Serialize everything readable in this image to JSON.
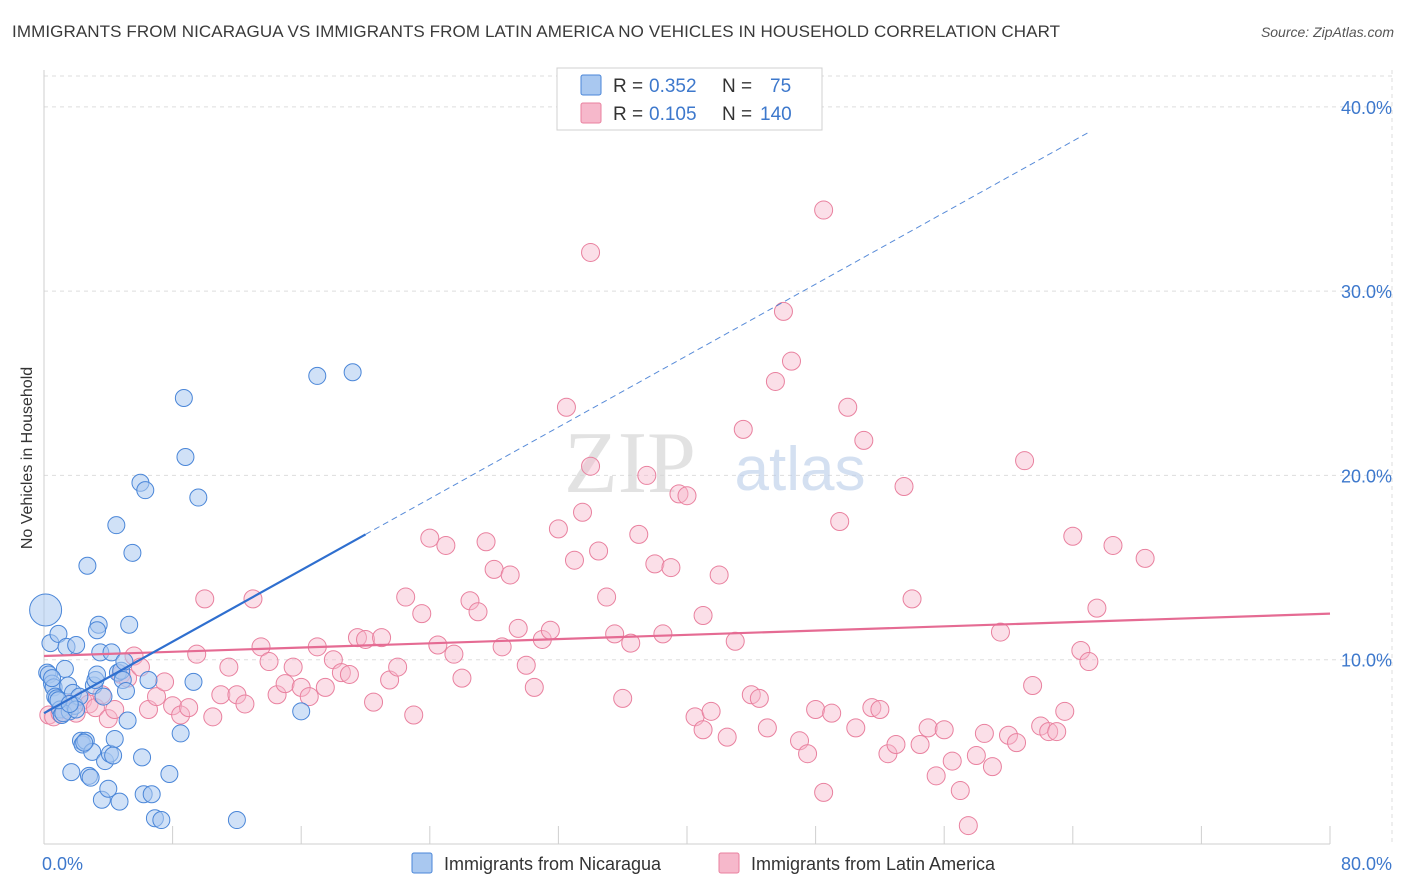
{
  "title": "IMMIGRANTS FROM NICARAGUA VS IMMIGRANTS FROM LATIN AMERICA NO VEHICLES IN HOUSEHOLD CORRELATION CHART",
  "source": "Source: ZipAtlas.com",
  "watermark": {
    "zip": "ZIP",
    "atlas": "atlas"
  },
  "colors": {
    "blue": "#4a86d8",
    "blue_fill": "#a9c8f0",
    "blue_line": "#2f6fcf",
    "pink": "#e9819f",
    "pink_fill": "#f6b8cb",
    "pink_line": "#e56b93",
    "tick_text": "#3d78cc",
    "grid": "#dddddd"
  },
  "legend": {
    "rows": [
      {
        "r_label": "R =",
        "r_value": "0.352",
        "n_label": "N =",
        "n_value": "75"
      },
      {
        "r_label": "R =",
        "r_value": "0.105",
        "n_label": "N =",
        "n_value": "140"
      }
    ]
  },
  "chart_data": {
    "type": "scatter",
    "title": "IMMIGRANTS FROM NICARAGUA VS IMMIGRANTS FROM LATIN AMERICA NO VEHICLES IN HOUSEHOLD CORRELATION CHART",
    "xlabel": "",
    "ylabel": "No Vehicles in Household",
    "xlim": [
      0,
      80
    ],
    "ylim": [
      0,
      42
    ],
    "x_tick_labels": [
      "0.0%",
      "80.0%"
    ],
    "y_ticks": [
      10,
      20,
      30,
      40
    ],
    "y_tick_labels": [
      "10.0%",
      "20.0%",
      "30.0%",
      "40.0%"
    ],
    "grid": true,
    "legend_position": "top-center",
    "series": [
      {
        "name": "Immigrants from Nicaragua",
        "r": 0.352,
        "n": 75,
        "trend": {
          "x0": 0.0,
          "y0": 7.1,
          "x1": 20.0,
          "y1": 16.8,
          "dash_to_x": 65.0
        },
        "points": [
          [
            0.1,
            12.7
          ],
          [
            0.2,
            9.3
          ],
          [
            0.3,
            9.2
          ],
          [
            0.4,
            10.9
          ],
          [
            0.5,
            8.7
          ],
          [
            0.6,
            8.5
          ],
          [
            0.7,
            8.0
          ],
          [
            0.8,
            7.9
          ],
          [
            0.9,
            11.4
          ],
          [
            1.0,
            7.3
          ],
          [
            1.1,
            7.0
          ],
          [
            1.3,
            9.5
          ],
          [
            1.4,
            10.7
          ],
          [
            1.5,
            8.6
          ],
          [
            1.6,
            7.2
          ],
          [
            1.7,
            3.9
          ],
          [
            1.8,
            8.2
          ],
          [
            1.9,
            7.5
          ],
          [
            2.0,
            10.8
          ],
          [
            2.2,
            8.0
          ],
          [
            2.3,
            5.6
          ],
          [
            2.4,
            5.4
          ],
          [
            2.6,
            5.6
          ],
          [
            2.7,
            15.1
          ],
          [
            2.8,
            3.7
          ],
          [
            2.9,
            3.6
          ],
          [
            3.0,
            5.0
          ],
          [
            3.1,
            8.6
          ],
          [
            3.2,
            8.9
          ],
          [
            3.3,
            9.2
          ],
          [
            3.4,
            11.9
          ],
          [
            3.5,
            10.4
          ],
          [
            3.6,
            2.4
          ],
          [
            3.7,
            8.0
          ],
          [
            3.8,
            4.5
          ],
          [
            4.0,
            3.0
          ],
          [
            4.1,
            4.9
          ],
          [
            4.2,
            10.4
          ],
          [
            4.4,
            5.7
          ],
          [
            4.5,
            17.3
          ],
          [
            4.6,
            9.3
          ],
          [
            4.8,
            9.4
          ],
          [
            4.9,
            8.9
          ],
          [
            5.1,
            8.3
          ],
          [
            5.2,
            6.7
          ],
          [
            5.3,
            11.9
          ],
          [
            5.5,
            15.8
          ],
          [
            6.0,
            19.6
          ],
          [
            6.2,
            2.7
          ],
          [
            6.3,
            19.2
          ],
          [
            6.5,
            8.9
          ],
          [
            6.7,
            2.7
          ],
          [
            6.9,
            1.4
          ],
          [
            7.3,
            1.3
          ],
          [
            7.8,
            3.8
          ],
          [
            8.5,
            6.0
          ],
          [
            8.7,
            24.2
          ],
          [
            8.8,
            21.0
          ],
          [
            9.3,
            8.8
          ],
          [
            9.6,
            18.8
          ],
          [
            12.0,
            1.3
          ],
          [
            16.0,
            7.2
          ],
          [
            17.0,
            25.4
          ],
          [
            19.2,
            25.6
          ],
          [
            0.5,
            9.0
          ],
          [
            1.2,
            7.1
          ],
          [
            2.5,
            5.5
          ],
          [
            4.3,
            4.8
          ],
          [
            5.0,
            9.9
          ],
          [
            6.1,
            4.7
          ],
          [
            3.3,
            11.6
          ],
          [
            2.0,
            7.3
          ],
          [
            0.9,
            7.8
          ],
          [
            1.6,
            7.6
          ],
          [
            4.7,
            2.3
          ]
        ]
      },
      {
        "name": "Immigrants from Latin America",
        "r": 0.105,
        "n": 140,
        "trend": {
          "x0": 0.0,
          "y0": 10.2,
          "x1": 80.0,
          "y1": 12.5
        },
        "points": [
          [
            0.3,
            7.0
          ],
          [
            0.6,
            6.9
          ],
          [
            1.0,
            7.1
          ],
          [
            1.3,
            7.3
          ],
          [
            1.6,
            7.6
          ],
          [
            2.0,
            7.1
          ],
          [
            2.4,
            7.8
          ],
          [
            2.8,
            7.6
          ],
          [
            3.2,
            7.4
          ],
          [
            3.6,
            8.1
          ],
          [
            4.0,
            6.8
          ],
          [
            4.4,
            7.3
          ],
          [
            4.8,
            9.2
          ],
          [
            5.2,
            9.0
          ],
          [
            5.6,
            10.2
          ],
          [
            6.0,
            9.6
          ],
          [
            6.5,
            7.3
          ],
          [
            7.0,
            8.0
          ],
          [
            7.5,
            8.8
          ],
          [
            8.0,
            7.5
          ],
          [
            8.5,
            7.0
          ],
          [
            9.0,
            7.4
          ],
          [
            9.5,
            10.3
          ],
          [
            10.0,
            13.3
          ],
          [
            10.5,
            6.9
          ],
          [
            11.0,
            8.1
          ],
          [
            11.5,
            9.6
          ],
          [
            12.0,
            8.1
          ],
          [
            12.5,
            7.6
          ],
          [
            13.0,
            13.3
          ],
          [
            13.5,
            10.7
          ],
          [
            14.0,
            9.9
          ],
          [
            14.5,
            8.1
          ],
          [
            15.0,
            8.7
          ],
          [
            15.5,
            9.6
          ],
          [
            16.0,
            8.5
          ],
          [
            16.5,
            8.0
          ],
          [
            17.0,
            10.7
          ],
          [
            17.5,
            8.5
          ],
          [
            18.0,
            10.0
          ],
          [
            18.5,
            9.3
          ],
          [
            19.0,
            9.2
          ],
          [
            19.5,
            11.2
          ],
          [
            20.0,
            11.1
          ],
          [
            20.5,
            7.7
          ],
          [
            21.0,
            11.2
          ],
          [
            21.5,
            8.9
          ],
          [
            22.0,
            9.6
          ],
          [
            22.5,
            13.4
          ],
          [
            23.0,
            7.0
          ],
          [
            23.5,
            12.5
          ],
          [
            24.0,
            16.6
          ],
          [
            24.5,
            10.8
          ],
          [
            25.0,
            16.2
          ],
          [
            25.5,
            10.3
          ],
          [
            26.0,
            9.0
          ],
          [
            26.5,
            13.2
          ],
          [
            27.0,
            12.6
          ],
          [
            27.5,
            16.4
          ],
          [
            28.0,
            14.9
          ],
          [
            28.5,
            10.7
          ],
          [
            29.0,
            14.6
          ],
          [
            29.5,
            11.7
          ],
          [
            30.0,
            9.7
          ],
          [
            30.5,
            8.5
          ],
          [
            31.0,
            11.1
          ],
          [
            31.5,
            11.6
          ],
          [
            32.0,
            17.1
          ],
          [
            32.5,
            23.7
          ],
          [
            33.0,
            15.4
          ],
          [
            33.5,
            18.0
          ],
          [
            34.0,
            20.5
          ],
          [
            34.5,
            15.9
          ],
          [
            35.0,
            13.4
          ],
          [
            35.5,
            11.4
          ],
          [
            36.0,
            7.9
          ],
          [
            36.5,
            10.9
          ],
          [
            37.0,
            16.8
          ],
          [
            37.5,
            20.0
          ],
          [
            38.0,
            15.2
          ],
          [
            38.5,
            11.4
          ],
          [
            39.0,
            15.0
          ],
          [
            39.5,
            19.0
          ],
          [
            40.0,
            18.9
          ],
          [
            40.5,
            6.9
          ],
          [
            41.0,
            12.4
          ],
          [
            41.5,
            7.2
          ],
          [
            42.0,
            14.6
          ],
          [
            42.5,
            5.8
          ],
          [
            43.0,
            11.0
          ],
          [
            43.5,
            22.5
          ],
          [
            44.0,
            8.1
          ],
          [
            44.5,
            7.9
          ],
          [
            45.0,
            6.3
          ],
          [
            45.5,
            25.1
          ],
          [
            46.0,
            28.9
          ],
          [
            46.5,
            26.2
          ],
          [
            47.0,
            5.6
          ],
          [
            47.5,
            4.9
          ],
          [
            48.0,
            7.3
          ],
          [
            48.5,
            2.8
          ],
          [
            49.0,
            7.1
          ],
          [
            49.5,
            17.5
          ],
          [
            50.0,
            23.7
          ],
          [
            50.5,
            6.3
          ],
          [
            51.0,
            21.9
          ],
          [
            51.5,
            7.4
          ],
          [
            52.0,
            7.3
          ],
          [
            52.5,
            4.9
          ],
          [
            53.0,
            5.4
          ],
          [
            53.5,
            19.4
          ],
          [
            54.0,
            13.3
          ],
          [
            54.5,
            5.4
          ],
          [
            55.0,
            6.3
          ],
          [
            55.5,
            3.7
          ],
          [
            56.0,
            6.2
          ],
          [
            56.5,
            4.5
          ],
          [
            57.0,
            2.9
          ],
          [
            57.5,
            1.0
          ],
          [
            58.0,
            4.8
          ],
          [
            58.5,
            6.0
          ],
          [
            59.0,
            4.2
          ],
          [
            59.5,
            11.5
          ],
          [
            60.0,
            5.9
          ],
          [
            60.5,
            5.5
          ],
          [
            61.0,
            20.8
          ],
          [
            61.5,
            8.6
          ],
          [
            62.0,
            6.4
          ],
          [
            62.5,
            6.1
          ],
          [
            63.0,
            6.1
          ],
          [
            63.5,
            7.2
          ],
          [
            64.0,
            16.7
          ],
          [
            64.5,
            10.5
          ],
          [
            65.0,
            9.9
          ],
          [
            65.5,
            12.8
          ],
          [
            66.5,
            16.2
          ],
          [
            68.5,
            15.5
          ],
          [
            41.0,
            6.2
          ],
          [
            34.0,
            32.1
          ],
          [
            48.5,
            34.4
          ]
        ]
      }
    ]
  },
  "axes": {
    "x_left_label": "0.0%",
    "x_right_label": "80.0%",
    "y_labels": [
      "10.0%",
      "20.0%",
      "30.0%",
      "40.0%"
    ],
    "ylabel": "No Vehicles in Household"
  },
  "bottom_legend": [
    "Immigrants from Nicaragua",
    "Immigrants from Latin America"
  ]
}
